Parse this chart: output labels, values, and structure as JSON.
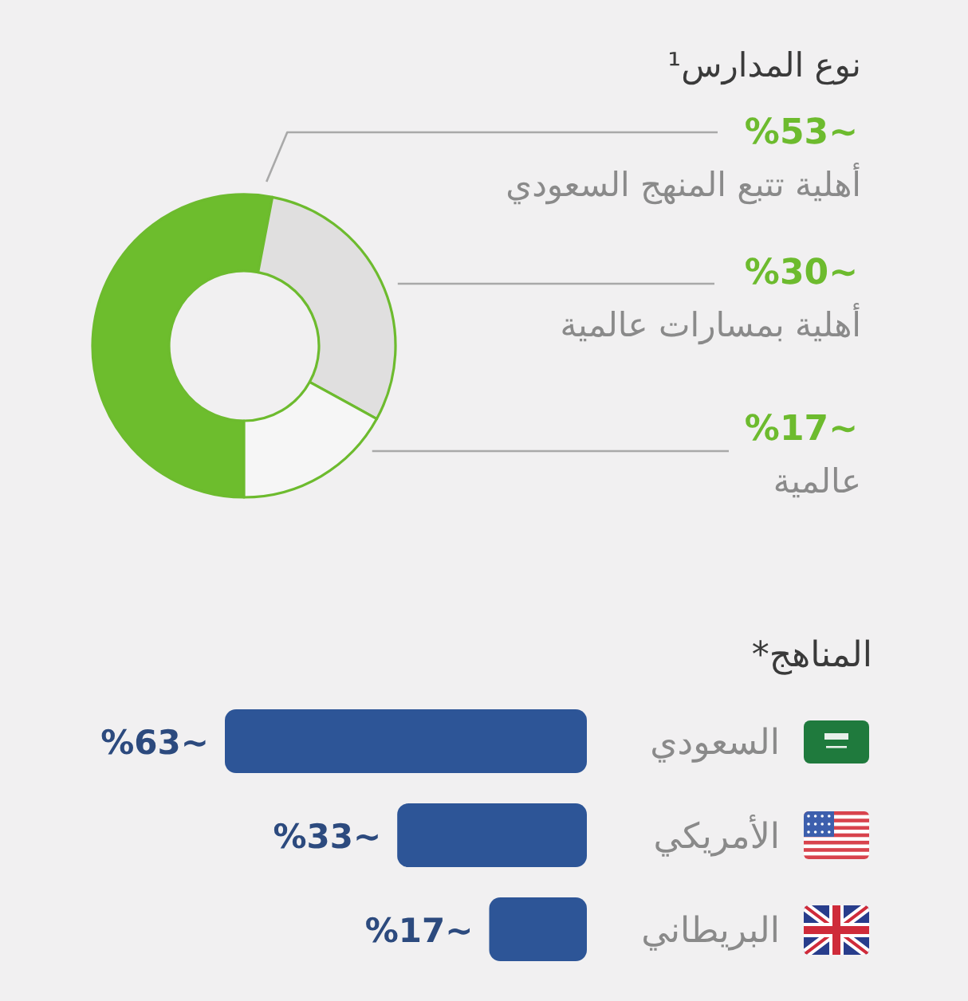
{
  "chart_data": [
    {
      "type": "donut",
      "title": "نوع المدارس¹",
      "categories": [
        "أهلية تتبع المنهج السعودي",
        "أهلية بمسارات عالمية",
        "عالمية"
      ],
      "values": [
        53,
        30,
        17
      ],
      "colors": [
        "#6dbd2d",
        "#e0dfdf",
        "#f6f6f6"
      ],
      "value_labels": [
        "%53~",
        "%30~",
        "%17~"
      ]
    },
    {
      "type": "bar",
      "orientation": "horizontal",
      "title": "المناهج*",
      "categories": [
        "السعودي",
        "الأمريكي",
        "البريطاني"
      ],
      "values": [
        63,
        33,
        17
      ],
      "color": "#2d5597",
      "value_labels": [
        "%63~",
        "%33~",
        "%17~"
      ]
    }
  ]
}
